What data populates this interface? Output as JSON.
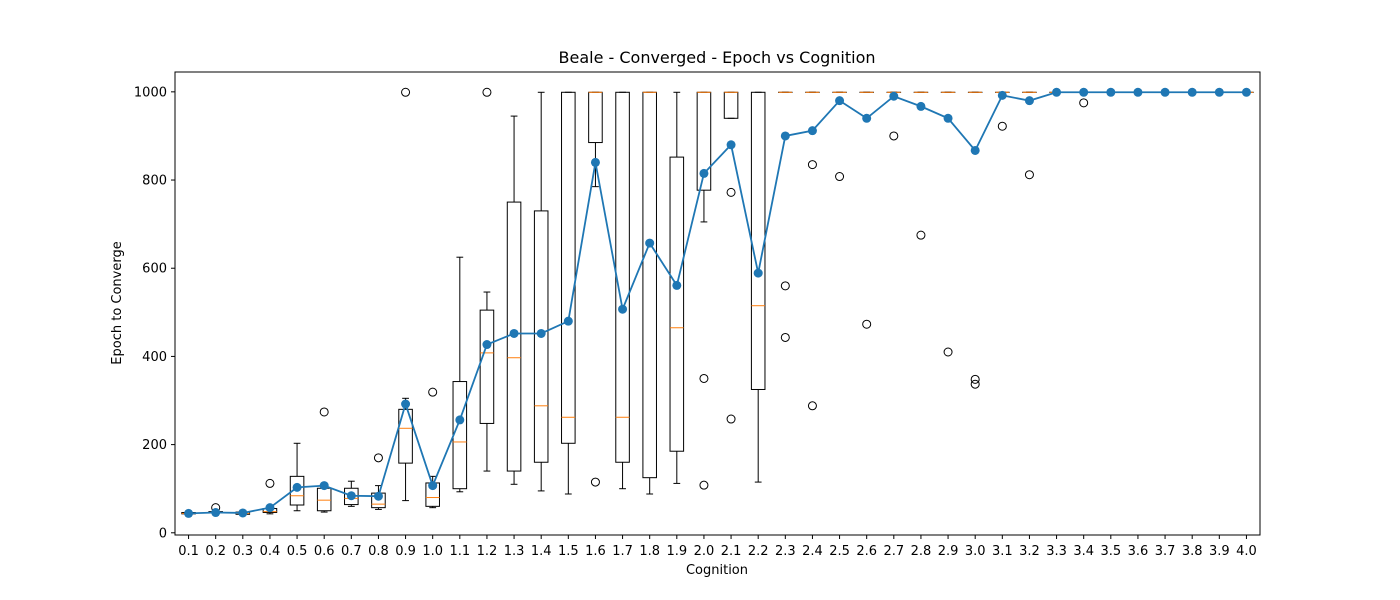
{
  "chart_data": {
    "type": "box",
    "title": "Beale - Converged - Epoch vs Cognition",
    "xlabel": "Cognition",
    "ylabel": "Epoch to Converge",
    "ylim": [
      -5,
      1045
    ],
    "yticks": [
      0,
      200,
      400,
      600,
      800,
      1000
    ],
    "grid": false,
    "colors": {
      "box": "#000000",
      "median": "#ff7f0e",
      "mean_line": "#1f77b4"
    },
    "categories": [
      "0.1",
      "0.2",
      "0.3",
      "0.4",
      "0.5",
      "0.6",
      "0.7",
      "0.8",
      "0.9",
      "1.0",
      "1.1",
      "1.2",
      "1.3",
      "1.4",
      "1.5",
      "1.6",
      "1.7",
      "1.8",
      "1.9",
      "2.0",
      "2.1",
      "2.2",
      "2.3",
      "2.4",
      "2.5",
      "2.6",
      "2.7",
      "2.8",
      "2.9",
      "3.0",
      "3.1",
      "3.2",
      "3.3",
      "3.4",
      "3.5",
      "3.6",
      "3.7",
      "3.8",
      "3.9",
      "4.0"
    ],
    "boxes": [
      {
        "whislo": 42,
        "q1": 43,
        "med": 44,
        "q3": 46,
        "whishi": 47,
        "fliers": []
      },
      {
        "whislo": 44,
        "q1": 45,
        "med": 46,
        "q3": 48,
        "whishi": 50,
        "fliers": [
          57
        ]
      },
      {
        "whislo": 40,
        "q1": 42,
        "med": 44,
        "q3": 47,
        "whishi": 50,
        "fliers": []
      },
      {
        "whislo": 43,
        "q1": 46,
        "med": 48,
        "q3": 55,
        "whishi": 60,
        "fliers": [
          112
        ]
      },
      {
        "whislo": 50,
        "q1": 63,
        "med": 84,
        "q3": 128,
        "whishi": 203,
        "fliers": []
      },
      {
        "whislo": 47,
        "q1": 50,
        "med": 74,
        "q3": 101,
        "whishi": 108,
        "fliers": [
          274
        ]
      },
      {
        "whislo": 60,
        "q1": 64,
        "med": 78,
        "q3": 101,
        "whishi": 117,
        "fliers": []
      },
      {
        "whislo": 53,
        "q1": 57,
        "med": 65,
        "q3": 90,
        "whishi": 107,
        "fliers": [
          170
        ]
      },
      {
        "whislo": 73,
        "q1": 158,
        "med": 237,
        "q3": 280,
        "whishi": 305,
        "fliers": [
          999
        ]
      },
      {
        "whislo": 57,
        "q1": 60,
        "med": 80,
        "q3": 113,
        "whishi": 128,
        "fliers": [
          319
        ]
      },
      {
        "whislo": 93,
        "q1": 100,
        "med": 206,
        "q3": 343,
        "whishi": 625,
        "fliers": []
      },
      {
        "whislo": 140,
        "q1": 248,
        "med": 408,
        "q3": 505,
        "whishi": 546,
        "fliers": [
          999
        ]
      },
      {
        "whislo": 110,
        "q1": 140,
        "med": 397,
        "q3": 750,
        "whishi": 945,
        "fliers": []
      },
      {
        "whislo": 95,
        "q1": 160,
        "med": 288,
        "q3": 730,
        "whishi": 999,
        "fliers": []
      },
      {
        "whislo": 88,
        "q1": 203,
        "med": 262,
        "q3": 999,
        "whishi": 999,
        "fliers": []
      },
      {
        "whislo": 785,
        "q1": 885,
        "med": 999,
        "q3": 999,
        "whishi": 999,
        "fliers": [
          115
        ]
      },
      {
        "whislo": 100,
        "q1": 160,
        "med": 262,
        "q3": 999,
        "whishi": 999,
        "fliers": []
      },
      {
        "whislo": 88,
        "q1": 125,
        "med": 999,
        "q3": 999,
        "whishi": 999,
        "fliers": []
      },
      {
        "whislo": 112,
        "q1": 185,
        "med": 465,
        "q3": 852,
        "whishi": 999,
        "fliers": []
      },
      {
        "whislo": 705,
        "q1": 777,
        "med": 999,
        "q3": 999,
        "whishi": 999,
        "fliers": [
          350,
          108
        ]
      },
      {
        "whislo": 940,
        "q1": 940,
        "med": 999,
        "q3": 999,
        "whishi": 999,
        "fliers": [
          772,
          258
        ]
      },
      {
        "whislo": 115,
        "q1": 325,
        "med": 515,
        "q3": 999,
        "whishi": 999,
        "fliers": []
      },
      {
        "whislo": 999,
        "q1": 999,
        "med": 999,
        "q3": 999,
        "whishi": 999,
        "fliers": [
          560,
          443
        ]
      },
      {
        "whislo": 999,
        "q1": 999,
        "med": 999,
        "q3": 999,
        "whishi": 999,
        "fliers": [
          835,
          288
        ]
      },
      {
        "whislo": 999,
        "q1": 999,
        "med": 999,
        "q3": 999,
        "whishi": 999,
        "fliers": [
          808
        ]
      },
      {
        "whislo": 999,
        "q1": 999,
        "med": 999,
        "q3": 999,
        "whishi": 999,
        "fliers": [
          473
        ]
      },
      {
        "whislo": 999,
        "q1": 999,
        "med": 999,
        "q3": 999,
        "whishi": 999,
        "fliers": [
          900
        ]
      },
      {
        "whislo": 999,
        "q1": 999,
        "med": 999,
        "q3": 999,
        "whishi": 999,
        "fliers": [
          675
        ]
      },
      {
        "whislo": 999,
        "q1": 999,
        "med": 999,
        "q3": 999,
        "whishi": 999,
        "fliers": [
          410
        ]
      },
      {
        "whislo": 999,
        "q1": 999,
        "med": 999,
        "q3": 999,
        "whishi": 999,
        "fliers": [
          348,
          337
        ]
      },
      {
        "whislo": 999,
        "q1": 999,
        "med": 999,
        "q3": 999,
        "whishi": 999,
        "fliers": [
          922
        ]
      },
      {
        "whislo": 999,
        "q1": 999,
        "med": 999,
        "q3": 999,
        "whishi": 999,
        "fliers": [
          812
        ]
      },
      {
        "whislo": 999,
        "q1": 999,
        "med": 999,
        "q3": 999,
        "whishi": 999,
        "fliers": []
      },
      {
        "whislo": 999,
        "q1": 999,
        "med": 999,
        "q3": 999,
        "whishi": 999,
        "fliers": [
          975
        ]
      },
      {
        "whislo": 999,
        "q1": 999,
        "med": 999,
        "q3": 999,
        "whishi": 999,
        "fliers": []
      },
      {
        "whislo": 999,
        "q1": 999,
        "med": 999,
        "q3": 999,
        "whishi": 999,
        "fliers": []
      },
      {
        "whislo": 999,
        "q1": 999,
        "med": 999,
        "q3": 999,
        "whishi": 999,
        "fliers": []
      },
      {
        "whislo": 999,
        "q1": 999,
        "med": 999,
        "q3": 999,
        "whishi": 999,
        "fliers": []
      },
      {
        "whislo": 999,
        "q1": 999,
        "med": 999,
        "q3": 999,
        "whishi": 999,
        "fliers": []
      },
      {
        "whislo": 999,
        "q1": 999,
        "med": 999,
        "q3": 999,
        "whishi": 999,
        "fliers": []
      }
    ],
    "mean_line": {
      "values": [
        44,
        46,
        45,
        57,
        103,
        107,
        84,
        83,
        292,
        107,
        256,
        427,
        452,
        452,
        480,
        840,
        507,
        657,
        561,
        815,
        880,
        589,
        900,
        912,
        980,
        940,
        990,
        967,
        940,
        867,
        992,
        980,
        999,
        999,
        999,
        999,
        999,
        999,
        999,
        999
      ]
    }
  }
}
